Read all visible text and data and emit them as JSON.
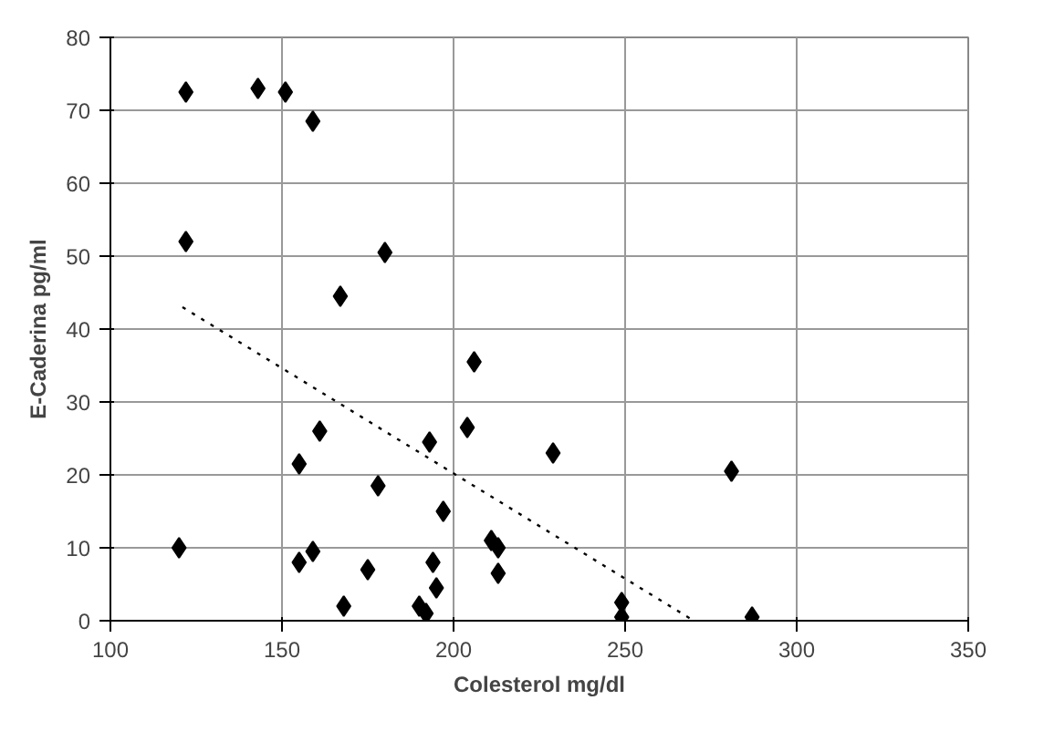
{
  "chart_data": {
    "type": "scatter",
    "xlabel": "Colesterol mg/dl",
    "ylabel": "E-Caderina pg/ml",
    "xlim": [
      100,
      350
    ],
    "ylim": [
      0,
      80
    ],
    "xticks": [
      100,
      150,
      200,
      250,
      300,
      350
    ],
    "yticks": [
      0,
      10,
      20,
      30,
      40,
      50,
      60,
      70,
      80
    ],
    "grid": true,
    "series": [
      {
        "marker": "diamond",
        "color": "#000000",
        "x": [
          120,
          122,
          122,
          143,
          151,
          159,
          167,
          180,
          155,
          161,
          155,
          159,
          168,
          175,
          178,
          190,
          192,
          193,
          194,
          195,
          197,
          204,
          206,
          211,
          213,
          213,
          229,
          249,
          249,
          281,
          287
        ],
        "values": [
          10,
          72.5,
          52,
          73,
          72.5,
          68.5,
          44.5,
          50.5,
          21.5,
          26,
          8,
          9.5,
          2,
          7,
          18.5,
          2,
          1,
          24.5,
          8,
          4.5,
          15,
          26.5,
          35.5,
          11,
          10,
          6.5,
          23,
          2.5,
          0.5,
          20.5,
          0.5
        ]
      },
      {
        "type": "line",
        "color": "#000000",
        "line_style": "dotted",
        "x": [
          121,
          270
        ],
        "values": [
          43,
          0
        ]
      }
    ]
  }
}
